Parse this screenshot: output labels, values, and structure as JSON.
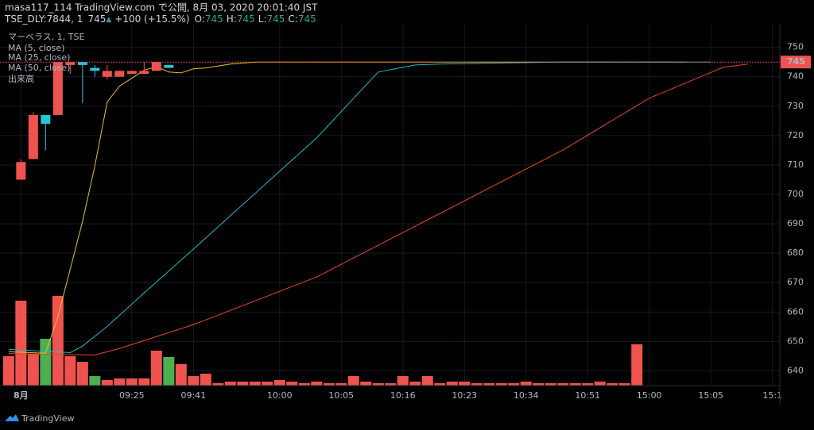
{
  "header": {
    "publisher": "masa117_114 TradingView.com で公開, 8月 03, 2020 20:01:40 JST",
    "symbol": "TSE_DLY:7844, 1",
    "last": "745",
    "arrow": "▲",
    "change": "+100 (+15.5%)",
    "ohlc": [
      {
        "label": "O:",
        "value": 745
      },
      {
        "label": "H:",
        "value": 745
      },
      {
        "label": "L:",
        "value": 745
      },
      {
        "label": "C:",
        "value": 745
      }
    ]
  },
  "chart_data": {
    "type": "candlestick",
    "title": "マーベラス, 1, TSE",
    "up_color": "#26c6da",
    "down_color": "#ef5350",
    "candles": {
      "x": [
        1,
        2,
        3,
        4,
        5,
        6,
        7,
        8,
        9,
        10,
        11,
        12,
        13
      ],
      "open": [
        711,
        727,
        724,
        745,
        745,
        744,
        742,
        742,
        742,
        742,
        742,
        745,
        743
      ],
      "high": [
        712,
        728,
        727,
        745,
        745,
        745,
        744,
        744,
        742,
        742,
        745,
        745,
        744
      ],
      "low": [
        705,
        712,
        715,
        727,
        741,
        731,
        740,
        739,
        740,
        741,
        741,
        742,
        743
      ],
      "close": [
        705,
        712,
        727,
        727,
        744,
        745,
        743,
        740,
        740,
        741,
        741,
        742,
        744
      ]
    },
    "volume": {
      "name": "出来高",
      "values": [
        37,
        107,
        40,
        59,
        113,
        37,
        30,
        12,
        7,
        9,
        9,
        9,
        44,
        36,
        27,
        12,
        15,
        3,
        5,
        5,
        5,
        5,
        7,
        5,
        3,
        5,
        3,
        3,
        12,
        5,
        3,
        3,
        12,
        5,
        12,
        3,
        5,
        5,
        3,
        3,
        3,
        3,
        5,
        3,
        3,
        3,
        3,
        3,
        5,
        3,
        3,
        52
      ],
      "colors": [
        "#ef5350",
        "#ef5350",
        "#ef5350",
        "#4caf50",
        "#ef5350",
        "#ef5350",
        "#ef5350",
        "#4caf50",
        "#ef5350",
        "#ef5350",
        "#ef5350",
        "#ef5350",
        "#ef5350",
        "#4caf50",
        "#ef5350",
        "#ef5350",
        "#ef5350",
        "#ef5350",
        "#ef5350",
        "#ef5350",
        "#ef5350",
        "#ef5350",
        "#ef5350",
        "#ef5350",
        "#ef5350",
        "#ef5350",
        "#ef5350",
        "#ef5350",
        "#ef5350",
        "#ef5350",
        "#ef5350",
        "#ef5350",
        "#ef5350",
        "#ef5350",
        "#ef5350",
        "#ef5350",
        "#ef5350",
        "#ef5350",
        "#ef5350",
        "#ef5350",
        "#ef5350",
        "#ef5350",
        "#ef5350",
        "#ef5350",
        "#ef5350",
        "#ef5350",
        "#ef5350",
        "#ef5350",
        "#ef5350",
        "#ef5350",
        "#ef5350",
        "#ef5350"
      ]
    },
    "series": [
      {
        "name": "MA (5, close)",
        "color": "#e6c229",
        "x": [
          0,
          3,
          4,
          5,
          6,
          7,
          8,
          9,
          10,
          11,
          12,
          13,
          14,
          15,
          16,
          18,
          20,
          55
        ],
        "values": [
          646.5,
          646,
          658.4,
          674.6,
          690.8,
          709.7,
          731.4,
          736.8,
          739.5,
          742.2,
          743.5,
          741.6,
          741.3,
          742.7,
          743,
          744.3,
          745,
          745
        ]
      },
      {
        "name": "MA (25, close)",
        "color": "#26b5c9",
        "x": [
          0,
          5,
          6,
          8,
          11,
          15,
          20,
          25,
          30,
          33,
          35,
          45,
          57
        ],
        "values": [
          647.3,
          646.2,
          648.4,
          655.1,
          666.5,
          681.4,
          700.3,
          719.2,
          741.6,
          744,
          744.3,
          745,
          745
        ]
      },
      {
        "name": "MA (50, close)",
        "color": "#e8452c",
        "x": [
          0,
          7,
          9,
          11,
          15,
          25,
          35,
          45,
          52,
          58,
          60
        ],
        "values": [
          645.9,
          645.4,
          647.6,
          650.3,
          655.7,
          671.9,
          693.5,
          715.1,
          732.7,
          743.2,
          744.3
        ]
      }
    ],
    "last_price": 745,
    "xlim": [
      -0.7,
      62.6
    ],
    "ylim": [
      635,
      758
    ],
    "yticks": [
      640,
      650,
      660,
      670,
      680,
      690,
      700,
      710,
      720,
      730,
      740,
      750
    ],
    "xticks": [
      {
        "value": 1,
        "label": "8月"
      },
      {
        "value": 10,
        "label": "09:25"
      },
      {
        "value": 15,
        "label": "09:41"
      },
      {
        "value": 22,
        "label": "10:00"
      },
      {
        "value": 27,
        "label": "10:05"
      },
      {
        "value": 32,
        "label": "10:16"
      },
      {
        "value": 37,
        "label": "10:23"
      },
      {
        "value": 42,
        "label": "10:34"
      },
      {
        "value": 47,
        "label": "10:51"
      },
      {
        "value": 52,
        "label": "15:00"
      },
      {
        "value": 57,
        "label": "15:05"
      },
      {
        "value": 62,
        "label": "15:1"
      }
    ],
    "grid": true
  },
  "footer": {
    "brand": "TradingView"
  }
}
